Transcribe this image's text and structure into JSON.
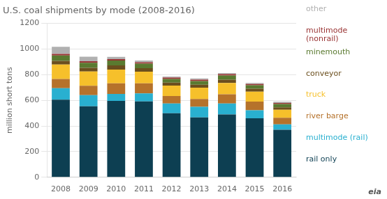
{
  "chart_data": {
    "type": "bar",
    "title": "U.S. coal shipments by mode (2008-2016)",
    "ylabel": "million short tons",
    "categories": [
      "2008",
      "2009",
      "2010",
      "2011",
      "2012",
      "2013",
      "2014",
      "2015",
      "2016"
    ],
    "series": [
      {
        "name": "rail only",
        "color": "#0d3f52",
        "values": [
          605,
          553,
          595,
          592,
          500,
          467,
          490,
          460,
          370
        ]
      },
      {
        "name": "multimode (rail)",
        "color": "#29b0d0",
        "values": [
          90,
          88,
          55,
          62,
          75,
          82,
          85,
          62,
          42
        ]
      },
      {
        "name": "river barge",
        "color": "#b5722b",
        "values": [
          72,
          72,
          82,
          78,
          58,
          62,
          72,
          68,
          52
        ]
      },
      {
        "name": "truck",
        "color": "#f6c02b",
        "values": [
          112,
          112,
          108,
          92,
          82,
          88,
          88,
          78,
          62
        ]
      },
      {
        "name": "conveyor",
        "color": "#6b4f1e",
        "values": [
          28,
          28,
          32,
          26,
          23,
          23,
          26,
          22,
          20
        ]
      },
      {
        "name": "minemouth",
        "color": "#5a7a30",
        "values": [
          42,
          40,
          38,
          36,
          28,
          28,
          32,
          28,
          25
        ]
      },
      {
        "name": "multimode\n(nonrail)",
        "color": "#993333",
        "values": [
          13,
          12,
          11,
          11,
          11,
          11,
          11,
          9,
          9
        ]
      },
      {
        "name": "other",
        "color": "#b0b0b0",
        "values": [
          55,
          35,
          18,
          13,
          9,
          9,
          9,
          9,
          9
        ]
      }
    ],
    "stacked": true,
    "ylim": [
      0,
      1200
    ],
    "yticks": [
      0,
      200,
      400,
      600,
      800,
      1000,
      1200
    ],
    "grid": true,
    "legend": "right",
    "annotations": [
      "eia"
    ]
  }
}
